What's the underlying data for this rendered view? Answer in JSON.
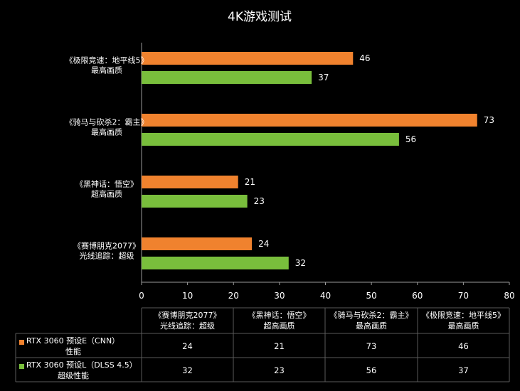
{
  "chart_data": {
    "type": "bar",
    "orientation": "horizontal",
    "title": "4K游戏测试",
    "categories": [
      [
        "《极限竞速：地平线5》",
        "最高画质"
      ],
      [
        "《骑马与砍杀2：霸主》",
        "最高画质"
      ],
      [
        "《黑神话：悟空》",
        "超高画质"
      ],
      [
        "《赛博朋克2077》",
        "光线追踪：超级"
      ]
    ],
    "table_categories": [
      [
        "《赛博朋克2077》",
        "光线追踪：超级"
      ],
      [
        "《黑神话：悟空》",
        "超高画质"
      ],
      [
        "《骑马与砍杀2：霸主》",
        "最高画质"
      ],
      [
        "《极限竞速：地平线5》",
        "最高画质"
      ]
    ],
    "series": [
      {
        "name": [
          "RTX 3060 预设E（CNN）",
          "性能"
        ],
        "color": "#F0822E",
        "values": [
          46,
          73,
          21,
          24
        ]
      },
      {
        "name": [
          "RTX 3060 预设L（DLSS 4.5）",
          "超级性能"
        ],
        "color": "#79BE3C",
        "values": [
          37,
          56,
          23,
          32
        ]
      }
    ],
    "xlim": [
      0,
      80
    ],
    "xticks": [
      0,
      10,
      20,
      30,
      40,
      50,
      60,
      70,
      80
    ],
    "grid": false,
    "legend": "data-table-below"
  }
}
